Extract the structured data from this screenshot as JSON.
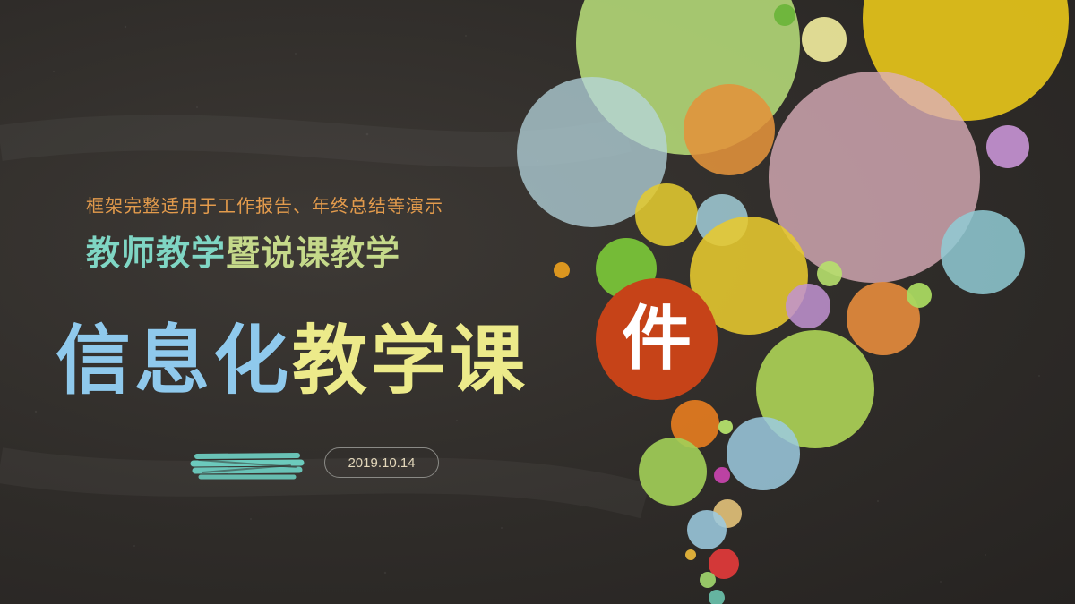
{
  "slide": {
    "subtitle": "框架完整适用于工作报告、年终总结等演示",
    "heading_part1": "教师教学",
    "heading_part2": "暨说课教学",
    "title_part1": "信息化",
    "title_part2": "教学课",
    "title_highlight": "件",
    "date": "2019.10.14"
  },
  "colors": {
    "background": "#2f2c29",
    "subtitle": "#e39b4c",
    "heading_accent": "#7fd6c4",
    "heading_main": "#c5d98a",
    "title_blue": "#8fc9ec",
    "title_yellow": "#ecea8a",
    "highlight": "#c64318",
    "chalk_stroke": "#6fd3c5"
  }
}
